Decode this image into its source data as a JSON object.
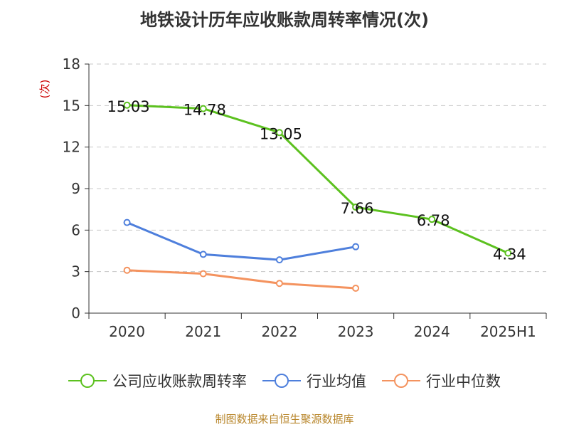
{
  "title": "地铁设计历年应收账款周转率情况(次)",
  "source": "制图数据来自恒生聚源数据库",
  "chart_data": {
    "type": "line",
    "title": "地铁设计历年应收账款周转率情况(次)",
    "ylabel": "(次)",
    "categories": [
      "2020",
      "2021",
      "2022",
      "2023",
      "2024",
      "2025H1"
    ],
    "ylim": [
      0,
      18
    ],
    "yticks": [
      0,
      3,
      6,
      9,
      12,
      15,
      18
    ],
    "grid": true,
    "legend_position": "bottom",
    "series": [
      {
        "name": "公司应收账款周转率",
        "color": "#5cc11f",
        "values": [
          15.03,
          14.78,
          13.05,
          7.66,
          6.78,
          4.34
        ],
        "labels": [
          "15.03",
          "14.78",
          "13.05",
          "7.66",
          "6.78",
          "4.34"
        ],
        "show_labels": true
      },
      {
        "name": "行业均值",
        "color": "#4e7fdc",
        "values": [
          6.55,
          4.25,
          3.85,
          4.8,
          null,
          null
        ],
        "show_labels": false
      },
      {
        "name": "行业中位数",
        "color": "#f4935f",
        "values": [
          3.1,
          2.85,
          2.15,
          1.8,
          null,
          null
        ],
        "show_labels": false
      }
    ]
  }
}
